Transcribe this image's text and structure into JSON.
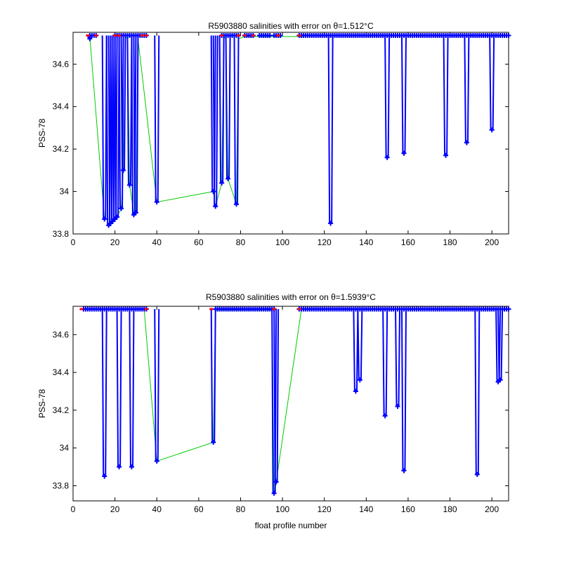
{
  "chart_data": [
    {
      "type": "line",
      "title": "R5903880 salinities with error on θ=1.512°C",
      "xlabel": "",
      "ylabel": "PSS-78",
      "xlim": [
        0,
        208
      ],
      "ylim": [
        33.8,
        34.75
      ],
      "xticks": [
        "0",
        "20",
        "40",
        "60",
        "80",
        "100",
        "120",
        "140",
        "160",
        "180",
        "200"
      ],
      "yticks": [
        "33.8",
        "34",
        "34.2",
        "34.4",
        "34.6"
      ],
      "colors": {
        "mean": "#00cc00",
        "error": "#0000ff",
        "marker": "#0000ff",
        "end": "#ff0000"
      },
      "series": [
        {
          "x": [
            8,
            15,
            20,
            21,
            23,
            24,
            25,
            26,
            27,
            29,
            30,
            31,
            40,
            67,
            68,
            71,
            72,
            73,
            74,
            78,
            79,
            82,
            90,
            95,
            98,
            110
          ],
          "y": [
            34.73,
            33.87,
            33.87,
            33.88,
            33.92,
            34.1,
            34.72,
            34.73,
            34.03,
            33.9,
            33.9,
            34.72,
            33.95,
            34.0,
            33.93,
            34.04,
            34.72,
            34.73,
            34.06,
            33.94,
            34.72,
            34.73,
            34.73,
            34.73,
            34.73,
            34.73
          ]
        }
      ],
      "dips": [
        {
          "x": 8,
          "v": 34.72
        },
        {
          "x": 15,
          "v": 33.87
        },
        {
          "x": 17,
          "v": 33.84
        },
        {
          "x": 18,
          "v": 33.85
        },
        {
          "x": 19,
          "v": 33.86
        },
        {
          "x": 20,
          "v": 33.87
        },
        {
          "x": 21,
          "v": 33.88
        },
        {
          "x": 23,
          "v": 33.92
        },
        {
          "x": 24,
          "v": 34.1
        },
        {
          "x": 27,
          "v": 34.03
        },
        {
          "x": 29,
          "v": 33.89
        },
        {
          "x": 30,
          "v": 33.9
        },
        {
          "x": 40,
          "v": 33.95
        },
        {
          "x": 67,
          "v": 34.0
        },
        {
          "x": 68,
          "v": 33.93
        },
        {
          "x": 71,
          "v": 34.04
        },
        {
          "x": 74,
          "v": 34.06
        },
        {
          "x": 78,
          "v": 33.94
        },
        {
          "x": 123,
          "v": 33.85
        },
        {
          "x": 150,
          "v": 34.16
        },
        {
          "x": 158,
          "v": 34.18
        },
        {
          "x": 178,
          "v": 34.17
        },
        {
          "x": 188,
          "v": 34.23
        },
        {
          "x": 200,
          "v": 34.29
        }
      ],
      "top_value": 34.735,
      "top_segments": [
        [
          8,
          11
        ],
        [
          20,
          35
        ],
        [
          71,
          79
        ],
        [
          82,
          86
        ],
        [
          89,
          94
        ],
        [
          96,
          99
        ],
        [
          108,
          208
        ]
      ],
      "red_marks": [
        7,
        11,
        20,
        22,
        33,
        35,
        71,
        79,
        82,
        86,
        98,
        108
      ]
    },
    {
      "type": "line",
      "title": "R5903880 salinities with error on θ=1.5939°C",
      "xlabel": "float profile number",
      "ylabel": "PSS-78",
      "xlim": [
        0,
        208
      ],
      "ylim": [
        33.72,
        34.75
      ],
      "xticks": [
        "0",
        "20",
        "40",
        "60",
        "80",
        "100",
        "120",
        "140",
        "160",
        "180",
        "200"
      ],
      "yticks": [
        "33.8",
        "34",
        "34.2",
        "34.4",
        "34.6"
      ],
      "colors": {
        "mean": "#00cc00",
        "error": "#0000ff",
        "marker": "#0000ff",
        "end": "#ff0000"
      },
      "series": [
        {
          "x": [
            34,
            40,
            67,
            68,
            95,
            96,
            97,
            109
          ],
          "y": [
            34.73,
            33.93,
            34.03,
            34.73,
            34.73,
            33.76,
            33.82,
            34.73
          ]
        }
      ],
      "dips": [
        {
          "x": 15,
          "v": 33.85
        },
        {
          "x": 22,
          "v": 33.9
        },
        {
          "x": 28,
          "v": 33.9
        },
        {
          "x": 40,
          "v": 33.93
        },
        {
          "x": 67,
          "v": 34.03
        },
        {
          "x": 96,
          "v": 33.76
        },
        {
          "x": 97,
          "v": 33.82
        },
        {
          "x": 135,
          "v": 34.3
        },
        {
          "x": 137,
          "v": 34.36
        },
        {
          "x": 149,
          "v": 34.17
        },
        {
          "x": 155,
          "v": 34.22
        },
        {
          "x": 158,
          "v": 33.88
        },
        {
          "x": 193,
          "v": 33.86
        },
        {
          "x": 203,
          "v": 34.35
        },
        {
          "x": 204,
          "v": 34.36
        }
      ],
      "top_value": 34.735,
      "top_segments": [
        [
          5,
          35
        ],
        [
          68,
          96
        ],
        [
          108,
          208
        ]
      ],
      "red_marks": [
        4,
        35,
        66,
        96,
        108
      ]
    }
  ]
}
